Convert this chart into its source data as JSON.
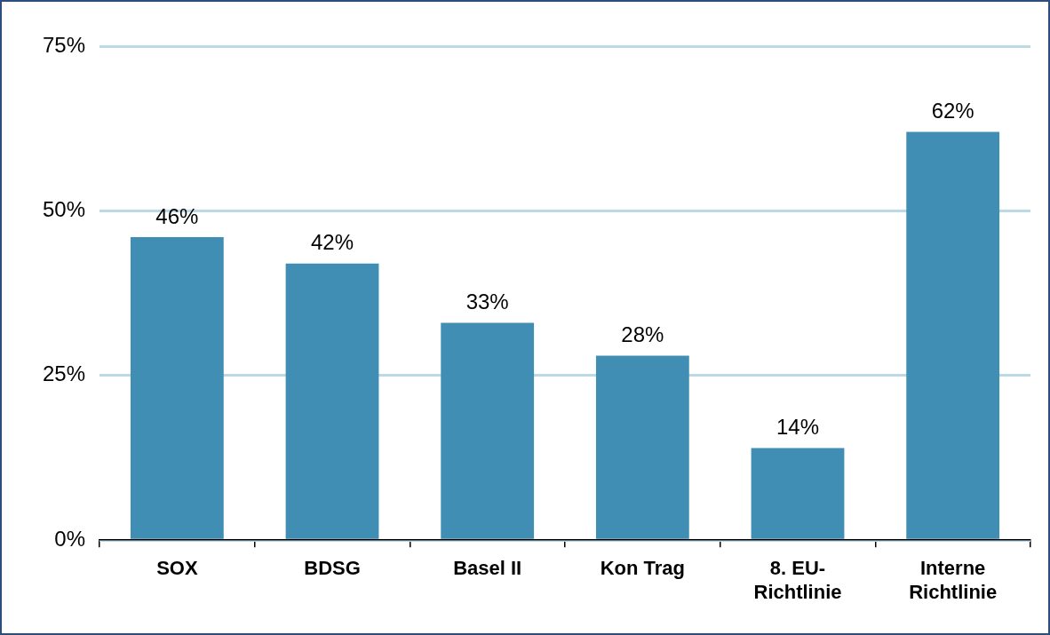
{
  "chart_data": {
    "type": "bar",
    "categories": [
      "SOX",
      "BDSG",
      "Basel II",
      "Kon Trag",
      "8. EU-Richtlinie",
      "Interne Richtlinie"
    ],
    "values": [
      46,
      42,
      33,
      28,
      14,
      62
    ],
    "value_labels": [
      "46%",
      "42%",
      "33%",
      "28%",
      "14%",
      "62%"
    ],
    "color": "#418eb4",
    "ylim": [
      0,
      75
    ],
    "yticks": [
      {
        "value": 0,
        "label": "0%"
      },
      {
        "value": 25,
        "label": "25%"
      },
      {
        "value": 50,
        "label": "50%"
      },
      {
        "value": 75,
        "label": "75%"
      }
    ],
    "grid": "y",
    "legend": false
  }
}
